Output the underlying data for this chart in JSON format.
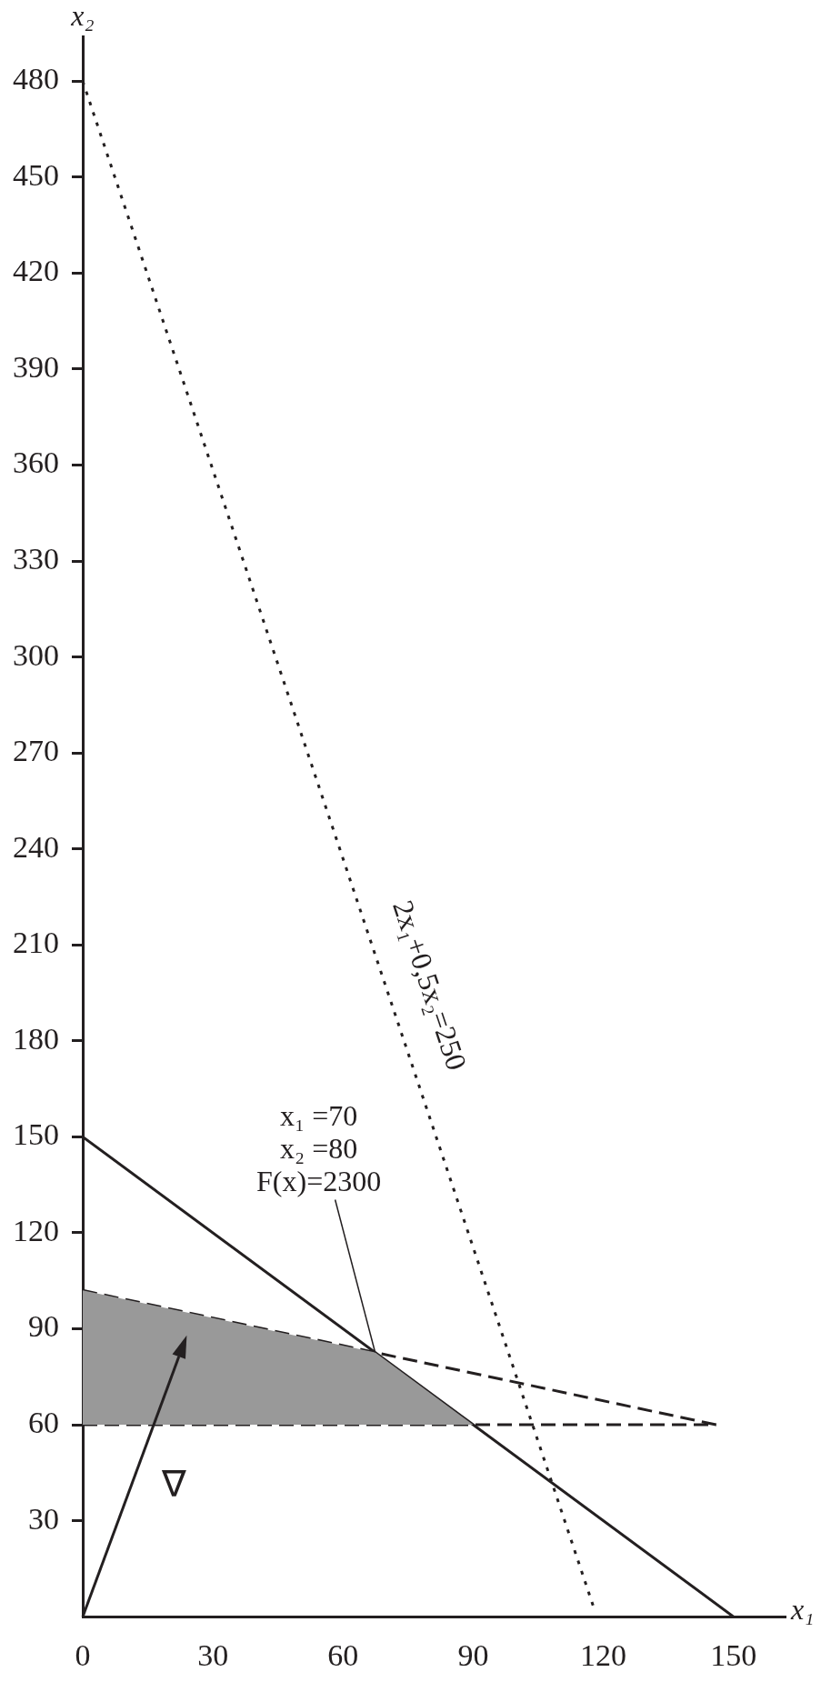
{
  "chart_data": {
    "type": "line",
    "xlabel": "x₁",
    "ylabel": "x₂",
    "xlim": [
      0,
      162
    ],
    "ylim": [
      0,
      494
    ],
    "xticks": [
      0,
      30,
      60,
      90,
      120,
      150
    ],
    "yticks": [
      30,
      60,
      90,
      120,
      150,
      180,
      210,
      240,
      270,
      300,
      330,
      360,
      390,
      420,
      450,
      480
    ],
    "grid": false,
    "legend": false,
    "marker": "none",
    "series": [
      {
        "type": "area",
        "color": "#999999",
        "x": [
          0,
          0,
          67.4,
          90
        ],
        "values": [
          60,
          102,
          82.6,
          60
        ]
      },
      {
        "color": "#231f20",
        "line_style": "solid",
        "x": [
          0,
          150
        ],
        "values": [
          150,
          0
        ]
      },
      {
        "color": "#231f20",
        "line_style": "dashed",
        "x": [
          0,
          146
        ],
        "values": [
          102,
          60
        ]
      },
      {
        "color": "#231f20",
        "line_style": "dashed",
        "x": [
          0,
          146
        ],
        "values": [
          60,
          60
        ]
      },
      {
        "name": "2x₁+0,5x₂=250",
        "color": "#231f20",
        "line_style": "dotted",
        "x": [
          0,
          118
        ],
        "values": [
          480,
          2
        ]
      }
    ],
    "annotations": [
      {
        "text": "x₁ =70\nx₂ =80\nF(x)=2300",
        "x": 67.4,
        "y": 82.6
      },
      "∇"
    ]
  }
}
